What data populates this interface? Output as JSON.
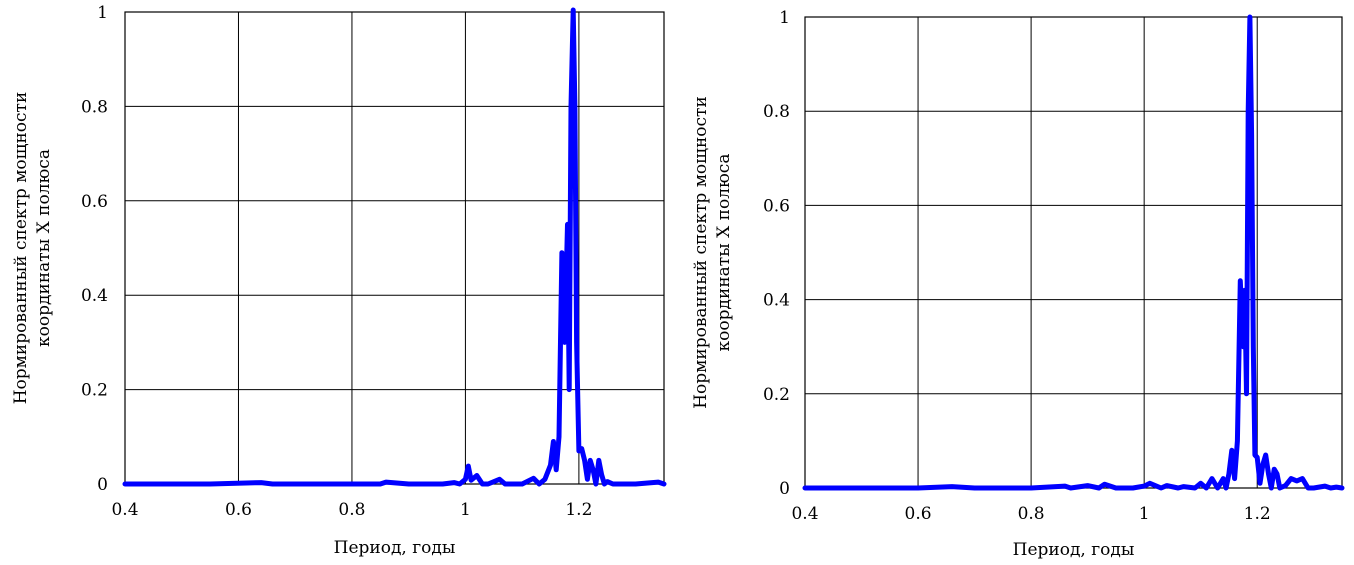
{
  "chart_data": [
    {
      "type": "line",
      "xlabel": "Период, годы",
      "ylabel_line1": "Нормированный спектр мощности",
      "ylabel_line2": "координаты X полюса",
      "xlim": [
        0.4,
        1.35
      ],
      "ylim": [
        0,
        1
      ],
      "xticks": [
        "0.4",
        "0.6",
        "0.8",
        "1",
        "1.2"
      ],
      "yticks": [
        "0",
        "0.2",
        "0.4",
        "0.6",
        "0.8",
        "1"
      ],
      "grid": true,
      "line_color": "#0000ff",
      "x": [
        0.4,
        0.55,
        0.64,
        0.66,
        0.7,
        0.85,
        0.86,
        0.9,
        0.96,
        0.98,
        0.99,
        1.0,
        1.005,
        1.01,
        1.02,
        1.03,
        1.04,
        1.06,
        1.07,
        1.08,
        1.1,
        1.12,
        1.13,
        1.14,
        1.15,
        1.155,
        1.16,
        1.165,
        1.17,
        1.175,
        1.18,
        1.183,
        1.186,
        1.19,
        1.193,
        1.196,
        1.2,
        1.205,
        1.21,
        1.215,
        1.22,
        1.225,
        1.23,
        1.235,
        1.24,
        1.245,
        1.25,
        1.26,
        1.3,
        1.34,
        1.35
      ],
      "y": [
        0.0,
        0.0,
        0.003,
        0.0,
        0.0,
        0.0,
        0.004,
        0.0,
        0.0,
        0.003,
        0.0,
        0.01,
        0.038,
        0.008,
        0.018,
        0.0,
        0.0,
        0.01,
        0.0,
        0.0,
        0.0,
        0.012,
        0.0,
        0.01,
        0.04,
        0.09,
        0.03,
        0.1,
        0.49,
        0.3,
        0.55,
        0.2,
        0.8,
        1.02,
        0.8,
        0.3,
        0.07,
        0.075,
        0.05,
        0.01,
        0.05,
        0.03,
        0.0,
        0.05,
        0.02,
        0.0,
        0.005,
        0.0,
        0.0,
        0.004,
        0.0
      ]
    },
    {
      "type": "line",
      "xlabel": "Период, годы",
      "ylabel_line1": "Нормированный спектр мощности",
      "ylabel_line2": "координаты X полюса",
      "xlim": [
        0.4,
        1.35
      ],
      "ylim": [
        0,
        1
      ],
      "xticks": [
        "0.4",
        "0.6",
        "0.8",
        "1",
        "1.2"
      ],
      "yticks": [
        "0",
        "0.2",
        "0.4",
        "0.6",
        "0.8",
        "1"
      ],
      "grid": true,
      "line_color": "#0000ff",
      "x": [
        0.4,
        0.5,
        0.6,
        0.66,
        0.7,
        0.8,
        0.86,
        0.87,
        0.9,
        0.92,
        0.93,
        0.95,
        0.98,
        1.0,
        1.01,
        1.03,
        1.04,
        1.06,
        1.07,
        1.09,
        1.1,
        1.11,
        1.12,
        1.13,
        1.14,
        1.145,
        1.15,
        1.155,
        1.16,
        1.165,
        1.17,
        1.175,
        1.178,
        1.181,
        1.184,
        1.187,
        1.19,
        1.193,
        1.196,
        1.2,
        1.205,
        1.21,
        1.215,
        1.22,
        1.225,
        1.23,
        1.235,
        1.24,
        1.25,
        1.26,
        1.27,
        1.28,
        1.29,
        1.3,
        1.32,
        1.33,
        1.34,
        1.35
      ],
      "y": [
        0.0,
        0.0,
        0.0,
        0.003,
        0.0,
        0.0,
        0.004,
        0.0,
        0.005,
        0.0,
        0.008,
        0.0,
        0.0,
        0.004,
        0.01,
        0.0,
        0.005,
        0.0,
        0.003,
        0.0,
        0.01,
        0.0,
        0.02,
        0.0,
        0.02,
        0.0,
        0.03,
        0.08,
        0.02,
        0.1,
        0.44,
        0.3,
        0.42,
        0.2,
        0.8,
        1.0,
        0.75,
        0.3,
        0.07,
        0.065,
        0.01,
        0.05,
        0.07,
        0.03,
        0.0,
        0.04,
        0.03,
        0.0,
        0.005,
        0.02,
        0.015,
        0.02,
        0.0,
        0.0,
        0.004,
        0.0,
        0.002,
        0.0
      ]
    }
  ]
}
